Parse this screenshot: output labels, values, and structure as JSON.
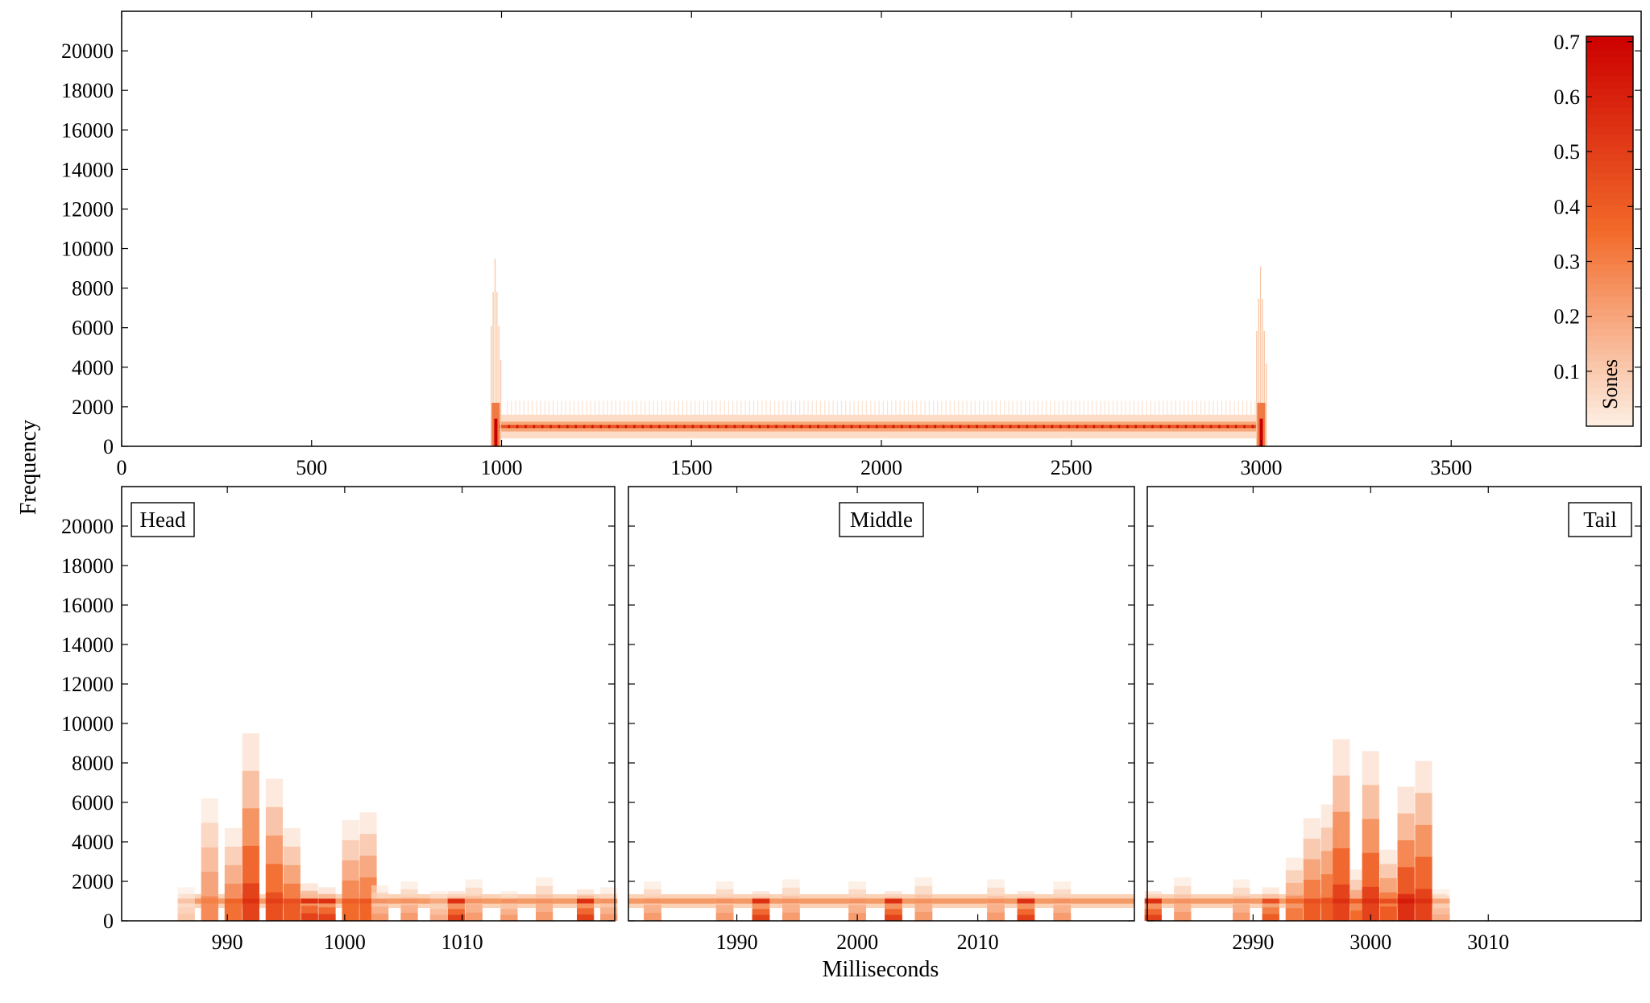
{
  "figure": {
    "ylabel": "Frequency",
    "xlabel": "Milliseconds"
  },
  "colors": {
    "low": "#fdf0e4",
    "mid": "#f26a2a",
    "high": "#cc0000"
  },
  "colorbar": {
    "label": "Sones",
    "range": [
      0,
      0.71
    ],
    "ticks": [
      "0.1",
      "0.2",
      "0.3",
      "0.4",
      "0.5",
      "0.6",
      "0.7"
    ]
  },
  "chart_data": [
    {
      "type": "heatmap",
      "panel": "overview",
      "title": "",
      "xlim": [
        0,
        4000
      ],
      "ylim": [
        0,
        22000
      ],
      "xticks": [
        "0",
        "500",
        "1000",
        "1500",
        "2000",
        "2500",
        "3000",
        "3500"
      ],
      "yticks": [
        "0",
        "2000",
        "4000",
        "6000",
        "8000",
        "10000",
        "12000",
        "14000",
        "16000",
        "18000",
        "20000"
      ],
      "tone": {
        "start_ms": 975,
        "end_ms": 3005,
        "freq_hz": 1000,
        "sones": 0.45
      },
      "onset_transient": {
        "time_ms": 985,
        "max_freq_hz": 9500
      },
      "offset_transient": {
        "time_ms": 3000,
        "max_freq_hz": 9100
      }
    },
    {
      "type": "heatmap",
      "panel": "head",
      "label": "Head",
      "xlim": [
        981,
        1023
      ],
      "ylim": [
        0,
        22000
      ],
      "xticks": [
        "990",
        "1000",
        "1010"
      ],
      "yticks": [
        "0",
        "2000",
        "4000",
        "6000",
        "8000",
        "10000",
        "12000",
        "14000",
        "16000",
        "18000",
        "20000"
      ],
      "columns": [
        {
          "t": 986.5,
          "top": 1700,
          "peak": 0.12
        },
        {
          "t": 988.5,
          "top": 6200,
          "peak": 0.3
        },
        {
          "t": 990.5,
          "top": 4700,
          "peak": 0.38
        },
        {
          "t": 992.0,
          "top": 9500,
          "peak": 0.55
        },
        {
          "t": 994.0,
          "top": 7200,
          "peak": 0.5
        },
        {
          "t": 995.5,
          "top": 4700,
          "peak": 0.45
        },
        {
          "t": 997.0,
          "top": 1900,
          "peak": 0.55
        },
        {
          "t": 998.5,
          "top": 1700,
          "peak": 0.55
        },
        {
          "t": 1000.5,
          "top": 5100,
          "peak": 0.4
        },
        {
          "t": 1002.0,
          "top": 5500,
          "peak": 0.42
        },
        {
          "t": 1003.0,
          "top": 1800,
          "peak": 0.25
        },
        {
          "t": 1005.5,
          "top": 2000,
          "peak": 0.25
        },
        {
          "t": 1008.0,
          "top": 1500,
          "peak": 0.2
        },
        {
          "t": 1009.5,
          "top": 1500,
          "peak": 0.55
        },
        {
          "t": 1011.0,
          "top": 2100,
          "peak": 0.25
        },
        {
          "t": 1014.0,
          "top": 1500,
          "peak": 0.25
        },
        {
          "t": 1017.0,
          "top": 2200,
          "peak": 0.25
        },
        {
          "t": 1020.5,
          "top": 1600,
          "peak": 0.55
        },
        {
          "t": 1022.5,
          "top": 1700,
          "peak": 0.25
        }
      ]
    },
    {
      "type": "heatmap",
      "panel": "middle",
      "label": "Middle",
      "xlim": [
        1981,
        2023
      ],
      "ylim": [
        0,
        22000
      ],
      "xticks": [
        "1990",
        "2000",
        "2010"
      ],
      "yticks": [],
      "columns": [
        {
          "t": 1983.0,
          "top": 2000,
          "peak": 0.25
        },
        {
          "t": 1989.0,
          "top": 2000,
          "peak": 0.25
        },
        {
          "t": 1992.0,
          "top": 1500,
          "peak": 0.55
        },
        {
          "t": 1994.5,
          "top": 2100,
          "peak": 0.25
        },
        {
          "t": 2000.0,
          "top": 2000,
          "peak": 0.25
        },
        {
          "t": 2003.0,
          "top": 1500,
          "peak": 0.55
        },
        {
          "t": 2005.5,
          "top": 2200,
          "peak": 0.25
        },
        {
          "t": 2011.5,
          "top": 2100,
          "peak": 0.25
        },
        {
          "t": 2014.0,
          "top": 1500,
          "peak": 0.55
        },
        {
          "t": 2017.0,
          "top": 2000,
          "peak": 0.25
        }
      ]
    },
    {
      "type": "heatmap",
      "panel": "tail",
      "label": "Tail",
      "xlim": [
        2981,
        3023
      ],
      "ylim": [
        0,
        22000
      ],
      "xticks": [
        "2990",
        "3000",
        "3010"
      ],
      "yticks": [],
      "columns": [
        {
          "t": 2981.5,
          "top": 1500,
          "peak": 0.55
        },
        {
          "t": 2984.0,
          "top": 2200,
          "peak": 0.25
        },
        {
          "t": 2989.0,
          "top": 2100,
          "peak": 0.25
        },
        {
          "t": 2991.5,
          "top": 1700,
          "peak": 0.45
        },
        {
          "t": 2993.5,
          "top": 3200,
          "peak": 0.35
        },
        {
          "t": 2995.0,
          "top": 5200,
          "peak": 0.45
        },
        {
          "t": 2996.5,
          "top": 5900,
          "peak": 0.45
        },
        {
          "t": 2997.5,
          "top": 9200,
          "peak": 0.55
        },
        {
          "t": 2999.0,
          "top": 2600,
          "peak": 0.4
        },
        {
          "t": 3000.0,
          "top": 8600,
          "peak": 0.55
        },
        {
          "t": 3001.5,
          "top": 3600,
          "peak": 0.45
        },
        {
          "t": 3003.0,
          "top": 6800,
          "peak": 0.62
        },
        {
          "t": 3004.5,
          "top": 8100,
          "peak": 0.55
        },
        {
          "t": 3006.0,
          "top": 1600,
          "peak": 0.2
        }
      ]
    }
  ]
}
